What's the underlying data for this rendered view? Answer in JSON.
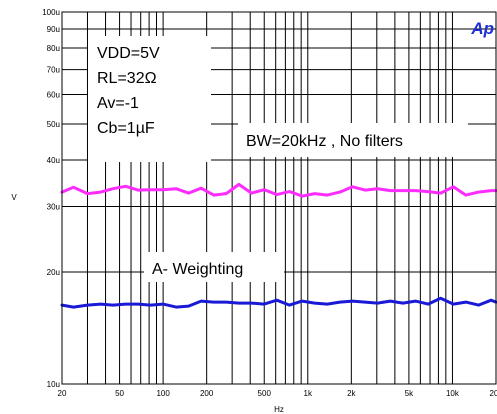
{
  "brand": {
    "logo_text": "Ap",
    "logo_color": "#1f2fd8"
  },
  "chart_data": {
    "type": "line",
    "xscale": "log",
    "yscale": "log",
    "xlim": [
      20,
      20000
    ],
    "ylim": [
      1e-05,
      0.0001
    ],
    "xlabel": "Hz",
    "ylabel": "V",
    "grid": true,
    "x_ticks": [
      {
        "value": 20,
        "label": "20"
      },
      {
        "value": 50,
        "label": "50"
      },
      {
        "value": 100,
        "label": "100"
      },
      {
        "value": 200,
        "label": "200"
      },
      {
        "value": 500,
        "label": "500"
      },
      {
        "value": 1000,
        "label": "1k"
      },
      {
        "value": 2000,
        "label": "2k"
      },
      {
        "value": 5000,
        "label": "5k"
      },
      {
        "value": 10000,
        "label": "10k"
      },
      {
        "value": 20000,
        "label": "20k"
      }
    ],
    "y_ticks": [
      {
        "value": 1e-05,
        "label": "10u"
      },
      {
        "value": 2e-05,
        "label": "20u"
      },
      {
        "value": 3e-05,
        "label": "30u"
      },
      {
        "value": 4e-05,
        "label": "40u"
      },
      {
        "value": 5e-05,
        "label": "50u"
      },
      {
        "value": 6e-05,
        "label": "60u"
      },
      {
        "value": 7e-05,
        "label": "70u"
      },
      {
        "value": 8e-05,
        "label": "80u"
      },
      {
        "value": 9e-05,
        "label": "90u"
      },
      {
        "value": 0.0001,
        "label": "100u"
      }
    ],
    "annotations": [
      {
        "text": "VDD=5V"
      },
      {
        "text": "RL=32Ω"
      },
      {
        "text": "Av=-1"
      },
      {
        "text": "Cb=1µF"
      },
      {
        "text": "BW=20kHz , No filters"
      },
      {
        "text": "A- Weighting"
      }
    ],
    "series": [
      {
        "color": "#ff2cff",
        "x": [
          20,
          24,
          30,
          37,
          45,
          55,
          67,
          82,
          100,
          123,
          150,
          183,
          224,
          273,
          334,
          408,
          500,
          611,
          747,
          913,
          1116,
          1364,
          1667,
          2037,
          2490,
          3043,
          3719,
          4545,
          5555,
          6789,
          8298,
          10141,
          12394,
          15148,
          18514,
          20000
        ],
        "y": [
          3.28e-05,
          3.38e-05,
          3.25e-05,
          3.28e-05,
          3.35e-05,
          3.4e-05,
          3.32e-05,
          3.33e-05,
          3.33e-05,
          3.35e-05,
          3.26e-05,
          3.36e-05,
          3.22e-05,
          3.25e-05,
          3.44e-05,
          3.26e-05,
          3.33e-05,
          3.23e-05,
          3.29e-05,
          3.2e-05,
          3.25e-05,
          3.22e-05,
          3.28e-05,
          3.39e-05,
          3.32e-05,
          3.35e-05,
          3.31e-05,
          3.31e-05,
          3.31e-05,
          3.29e-05,
          3.26e-05,
          3.39e-05,
          3.22e-05,
          3.28e-05,
          3.31e-05,
          3.31e-05
        ]
      },
      {
        "color": "#1a1ad6",
        "x": [
          20,
          24,
          30,
          37,
          45,
          55,
          67,
          82,
          100,
          123,
          150,
          183,
          224,
          273,
          334,
          408,
          500,
          611,
          747,
          913,
          1116,
          1364,
          1667,
          2037,
          2490,
          3043,
          3719,
          4545,
          5555,
          6789,
          8298,
          10141,
          12394,
          15148,
          18514,
          20000
        ],
        "y": [
          1.63e-05,
          1.61e-05,
          1.63e-05,
          1.64e-05,
          1.63e-05,
          1.64e-05,
          1.64e-05,
          1.63e-05,
          1.64e-05,
          1.61e-05,
          1.62e-05,
          1.67e-05,
          1.66e-05,
          1.66e-05,
          1.65e-05,
          1.65e-05,
          1.64e-05,
          1.68e-05,
          1.63e-05,
          1.67e-05,
          1.65e-05,
          1.64e-05,
          1.66e-05,
          1.67e-05,
          1.66e-05,
          1.65e-05,
          1.67e-05,
          1.65e-05,
          1.67e-05,
          1.64e-05,
          1.7e-05,
          1.64e-05,
          1.66e-05,
          1.63e-05,
          1.68e-05,
          1.66e-05
        ]
      }
    ]
  }
}
